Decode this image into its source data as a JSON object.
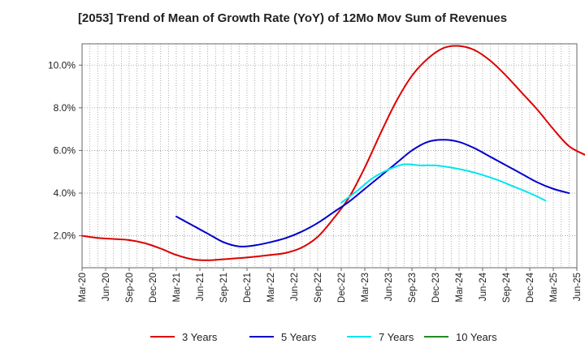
{
  "chart_data": {
    "type": "line",
    "title": "[2053]  Trend of Mean of Growth Rate (YoY) of 12Mo Mov Sum of Revenues",
    "xlabel": "",
    "ylabel": "",
    "x_ticks": [
      "Mar-20",
      "Jun-20",
      "Sep-20",
      "Dec-20",
      "Mar-21",
      "Jun-21",
      "Sep-21",
      "Dec-21",
      "Mar-22",
      "Jun-22",
      "Sep-22",
      "Dec-22",
      "Mar-23",
      "Jun-23",
      "Sep-23",
      "Dec-23",
      "Mar-24",
      "Jun-24",
      "Sep-24",
      "Dec-24",
      "Mar-25",
      "Jun-25"
    ],
    "y_ticks": [
      "2.0%",
      "4.0%",
      "6.0%",
      "8.0%",
      "10.0%"
    ],
    "y_tick_values": [
      2,
      4,
      6,
      8,
      10
    ],
    "ylim": [
      0.5,
      11.0
    ],
    "grid": true,
    "legend_position": "bottom",
    "series": [
      {
        "name": "3 Years",
        "color": "#dd0000",
        "start": "Mar-20",
        "values": [
          2.0,
          1.9,
          1.85,
          1.8,
          1.65,
          1.4,
          1.1,
          0.9,
          0.85,
          0.9,
          0.95,
          1.02,
          1.1,
          1.2,
          1.45,
          1.95,
          2.8,
          3.8,
          5.2,
          6.8,
          8.3,
          9.5,
          10.3,
          10.8,
          10.9,
          10.7,
          10.2,
          9.5,
          8.7,
          7.9,
          7.0,
          6.2,
          5.8
        ]
      },
      {
        "name": "5 Years",
        "color": "#0000cc",
        "start": "Mar-21",
        "values": [
          2.9,
          2.5,
          2.1,
          1.7,
          1.5,
          1.55,
          1.7,
          1.9,
          2.2,
          2.6,
          3.1,
          3.6,
          4.2,
          4.8,
          5.4,
          6.0,
          6.4,
          6.5,
          6.4,
          6.1,
          5.7,
          5.3,
          4.9,
          4.5,
          4.2,
          4.0
        ]
      },
      {
        "name": "7 Years",
        "color": "#00e5ee",
        "start": "Dec-22",
        "values": [
          3.55,
          4.1,
          4.7,
          5.1,
          5.35,
          5.3,
          5.3,
          5.2,
          5.05,
          4.85,
          4.6,
          4.3,
          4.0,
          3.65
        ]
      },
      {
        "name": "10 Years",
        "color": "#228b22",
        "start": "Mar-20",
        "values": []
      }
    ]
  }
}
